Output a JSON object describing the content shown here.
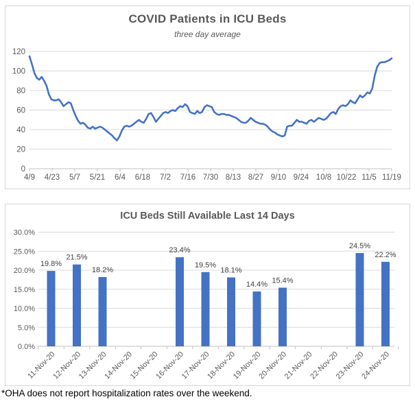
{
  "footnote": "*OHA does not report hospitalization rates over the weekend.",
  "colors": {
    "accent_blue": "#4472C4",
    "title_gray": "#595959",
    "axis_text": "#595959",
    "gridline": "#D9D9D9",
    "axis_line": "#BFBFBF",
    "bar_label": "#404040"
  },
  "chart_data": [
    {
      "type": "line",
      "title": "COVID Patients in ICU Beds",
      "subtitle": "three day average",
      "x_tick_labels": [
        "4/9",
        "4/23",
        "5/7",
        "5/21",
        "6/4",
        "6/18",
        "7/2",
        "7/16",
        "7/30",
        "8/13",
        "8/27",
        "9/10",
        "9/24",
        "10/8",
        "10/22",
        "11/5",
        "11/19"
      ],
      "ylim": [
        0,
        120
      ],
      "y_ticks": [
        0,
        20,
        40,
        60,
        80,
        100,
        120
      ],
      "grid": "horizontal",
      "legend_position": "none",
      "line_color": "#4472C4",
      "values": [
        115,
        107,
        98,
        93,
        91,
        94,
        90,
        85,
        76,
        71,
        70,
        70,
        71,
        68,
        64,
        66,
        68,
        67,
        60,
        54,
        49,
        46,
        47,
        45,
        42,
        41,
        43,
        41,
        42,
        43,
        42,
        40,
        38,
        36,
        34,
        31,
        29,
        33,
        39,
        43,
        44,
        43,
        44,
        46,
        48,
        50,
        48,
        47,
        51,
        56,
        57,
        53,
        48,
        51,
        54,
        57,
        58,
        57,
        59,
        60,
        59,
        62,
        64,
        63,
        66,
        64,
        58,
        57,
        56,
        59,
        57,
        58,
        63,
        65,
        64,
        63,
        58,
        56,
        55,
        56,
        56,
        55,
        55,
        54,
        53,
        52,
        50,
        48,
        47,
        47,
        49,
        52,
        50,
        48,
        47,
        46,
        46,
        45,
        43,
        40,
        38,
        37,
        35,
        34,
        33,
        34,
        43,
        44,
        44,
        47,
        50,
        48,
        48,
        47,
        46,
        49,
        50,
        48,
        50,
        52,
        51,
        50,
        51,
        54,
        57,
        58,
        56,
        61,
        64,
        65,
        64,
        66,
        70,
        68,
        67,
        71,
        75,
        73,
        75,
        78,
        77,
        82,
        95,
        104,
        108,
        109,
        109,
        110,
        111,
        113
      ]
    },
    {
      "type": "bar",
      "title": "ICU Beds Still Available Last 14 Days",
      "categories": [
        "11-Nov-20",
        "12-Nov-20",
        "13-Nov-20",
        "14-Nov-20",
        "15-Nov-20",
        "16-Nov-20",
        "17-Nov-20",
        "18-Nov-20",
        "19-Nov-20",
        "20-Nov-20",
        "21-Nov-20",
        "22-Nov-20",
        "23-Nov-20",
        "24-Nov-20"
      ],
      "values": [
        19.8,
        21.5,
        18.2,
        null,
        null,
        23.4,
        19.5,
        18.1,
        14.4,
        15.4,
        null,
        null,
        24.5,
        22.2
      ],
      "bar_labels": [
        "19.8%",
        "21.5%",
        "18.2%",
        "",
        "",
        "23.4%",
        "19.5%",
        "18.1%",
        "14.4%",
        "15.4%",
        "",
        "",
        "24.5%",
        "22.2%"
      ],
      "y_tick_labels": [
        "0.0%",
        "5.0%",
        "10.0%",
        "15.0%",
        "20.0%",
        "25.0%",
        "30.0%"
      ],
      "y_tick_values": [
        0,
        5,
        10,
        15,
        20,
        25,
        30
      ],
      "ylim": [
        0,
        30
      ],
      "grid": "horizontal",
      "legend_position": "none",
      "bar_color": "#4472C4"
    }
  ]
}
